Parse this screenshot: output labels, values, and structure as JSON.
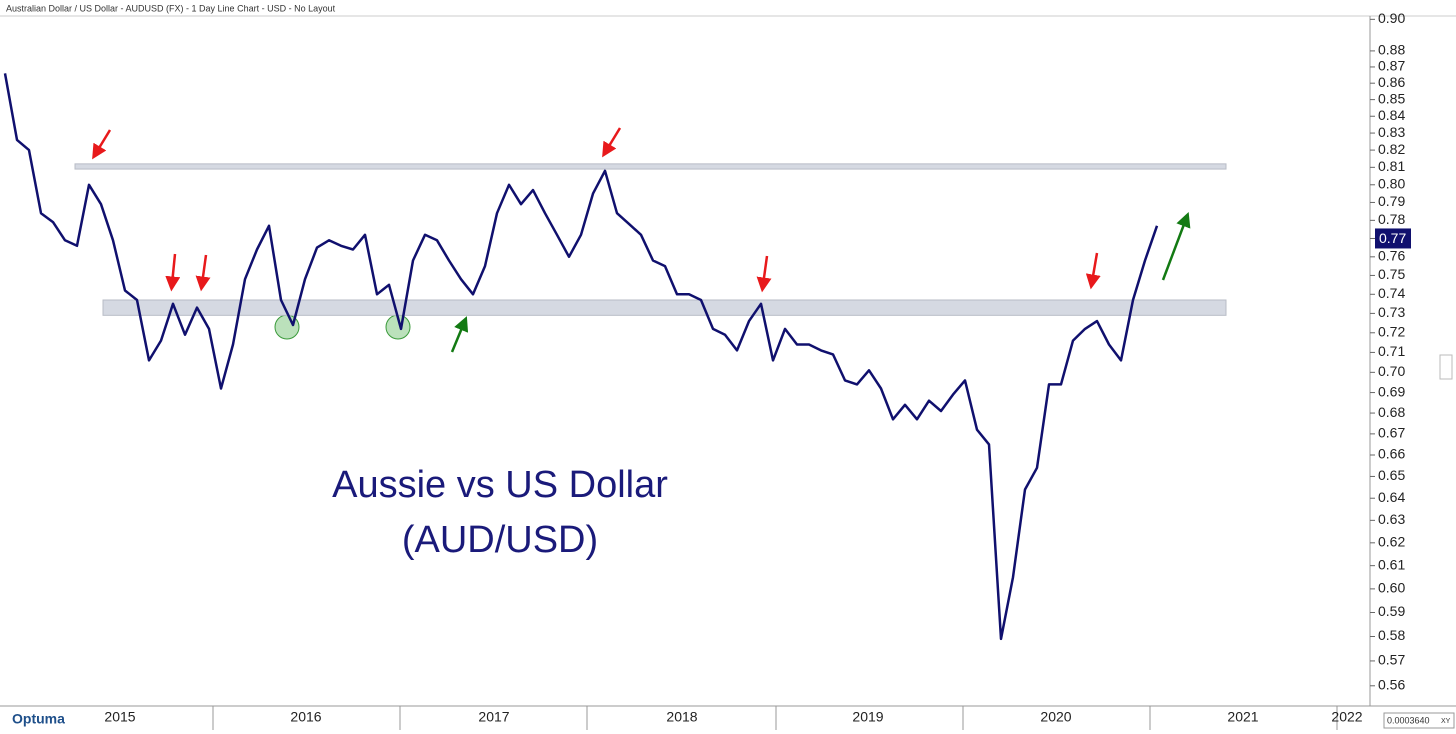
{
  "chart_data": {
    "type": "line",
    "title": "Australian Dollar / US Dollar - AUDUSD (FX) - 1 Day Line Chart - USD - No Layout",
    "annotation": [
      "Aussie vs US Dollar",
      "(AUD/USD)"
    ],
    "x_labels": [
      "2015",
      "2016",
      "2017",
      "2018",
      "2019",
      "2020",
      "2021",
      "2022"
    ],
    "series": [
      {
        "name": "AUDUSD",
        "color": "#10106e",
        "values": [
          0.866,
          0.826,
          0.82,
          0.784,
          0.779,
          0.769,
          0.766,
          0.8,
          0.789,
          0.769,
          0.742,
          0.737,
          0.706,
          0.716,
          0.735,
          0.719,
          0.733,
          0.722,
          0.692,
          0.714,
          0.748,
          0.764,
          0.777,
          0.737,
          0.724,
          0.748,
          0.765,
          0.769,
          0.766,
          0.764,
          0.772,
          0.74,
          0.745,
          0.722,
          0.758,
          0.772,
          0.769,
          0.758,
          0.748,
          0.74,
          0.755,
          0.784,
          0.8,
          0.789,
          0.797,
          0.784,
          0.772,
          0.76,
          0.772,
          0.795,
          0.808,
          0.784,
          0.778,
          0.772,
          0.758,
          0.755,
          0.74,
          0.74,
          0.737,
          0.722,
          0.719,
          0.711,
          0.726,
          0.735,
          0.706,
          0.722,
          0.714,
          0.714,
          0.711,
          0.709,
          0.696,
          0.694,
          0.701,
          0.692,
          0.677,
          0.684,
          0.677,
          0.686,
          0.681,
          0.689,
          0.696,
          0.672,
          0.665,
          0.579,
          0.605,
          0.644,
          0.654,
          0.694,
          0.694,
          0.716,
          0.722,
          0.726,
          0.714,
          0.706,
          0.737,
          0.758,
          0.777
        ]
      }
    ],
    "last_price": 0.77,
    "bands": [
      {
        "from": 0.809,
        "to": 0.812
      },
      {
        "from": 0.729,
        "to": 0.737
      }
    ],
    "log_scale": true,
    "ylim": [
      0.552,
      0.906
    ],
    "yticks": [
      0.56,
      0.57,
      0.58,
      0.59,
      {
        "value": 0.6,
        "label": "0.60"
      },
      0.61,
      0.62,
      0.63,
      0.64,
      0.65,
      0.66,
      0.67,
      0.68,
      0.69,
      {
        "value": 0.7,
        "label": "0.70"
      },
      0.71,
      0.72,
      0.73,
      0.74,
      0.75,
      0.76,
      0.77,
      0.78,
      0.79,
      {
        "value": 0.8,
        "label": "0.80"
      },
      0.81,
      0.82,
      0.83,
      0.84,
      0.85,
      0.86,
      0.87,
      0.88,
      {
        "value": 0.9,
        "label": "0.90"
      }
    ],
    "brand": "Optuma",
    "footer_value": "0.0003640",
    "footer_mode": "XY"
  }
}
